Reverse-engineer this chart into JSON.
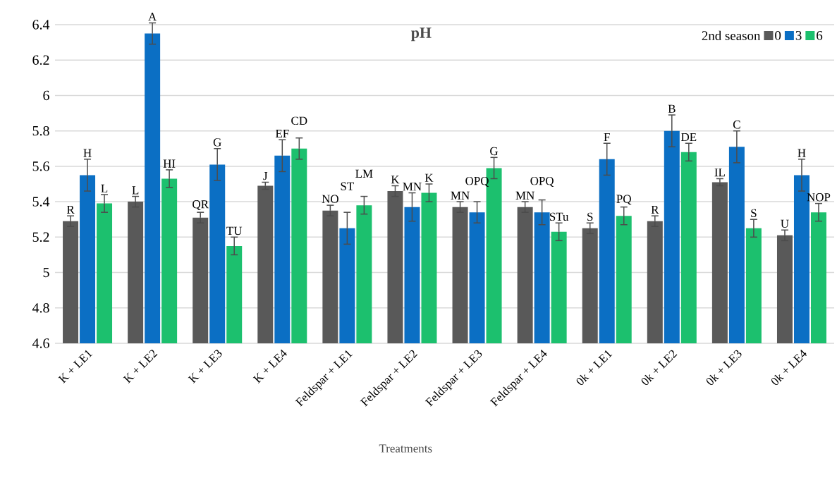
{
  "chart_data": {
    "type": "bar",
    "title": "pH",
    "xlabel": "Treatments",
    "legend_title": "2nd season",
    "categories": [
      "K + LE1",
      "K + LE2",
      "K + LE3",
      "K + LE4",
      "Feldspar + LE1",
      "Feldspar + LE2",
      "Feldspar + LE3",
      "Feldspar + LE4",
      "0k + LE1",
      "0k + LE2",
      "0k + LE3",
      "0k + LE4"
    ],
    "series": [
      {
        "name": "0",
        "color": "#595959",
        "values": [
          5.29,
          5.4,
          5.31,
          5.49,
          5.35,
          5.46,
          5.37,
          5.37,
          5.25,
          5.29,
          5.51,
          5.21
        ],
        "errors": [
          0.03,
          0.03,
          0.03,
          0.02,
          0.03,
          0.03,
          0.03,
          0.03,
          0.03,
          0.03,
          0.02,
          0.03
        ],
        "value_labels": [
          "R",
          "L",
          "QR",
          "J",
          "NO",
          "K",
          "MN",
          "MN",
          "S",
          "R",
          "IL",
          "U"
        ]
      },
      {
        "name": "3",
        "color": "#0b6fc4",
        "values": [
          5.55,
          6.35,
          5.61,
          5.66,
          5.25,
          5.37,
          5.34,
          5.34,
          5.64,
          5.8,
          5.71,
          5.55
        ],
        "errors": [
          0.09,
          0.06,
          0.09,
          0.09,
          0.09,
          0.08,
          0.06,
          0.07,
          0.09,
          0.09,
          0.09,
          0.09
        ],
        "value_labels": [
          "H",
          "A",
          "G",
          "EF",
          "ST",
          "MN",
          "OPQ",
          "OPQ",
          "F",
          "B",
          "C",
          "H"
        ]
      },
      {
        "name": "6",
        "color": "#1cc06e",
        "values": [
          5.39,
          5.53,
          5.15,
          5.7,
          5.38,
          5.45,
          5.59,
          5.23,
          5.32,
          5.68,
          5.25,
          5.34
        ],
        "errors": [
          0.05,
          0.05,
          0.05,
          0.06,
          0.05,
          0.05,
          0.06,
          0.05,
          0.05,
          0.05,
          0.05,
          0.05
        ],
        "value_labels": [
          "L",
          "HI",
          "TU",
          "CD",
          "LM",
          "K",
          "G",
          "STu",
          "PQ",
          "DE",
          "S",
          "NOP"
        ]
      }
    ],
    "ylim": [
      4.6,
      6.4
    ],
    "yticks": [
      4.6,
      4.8,
      5,
      5.2,
      5.4,
      5.6,
      5.8,
      6,
      6.2,
      6.4
    ],
    "grid": "y",
    "legend": "top right"
  }
}
